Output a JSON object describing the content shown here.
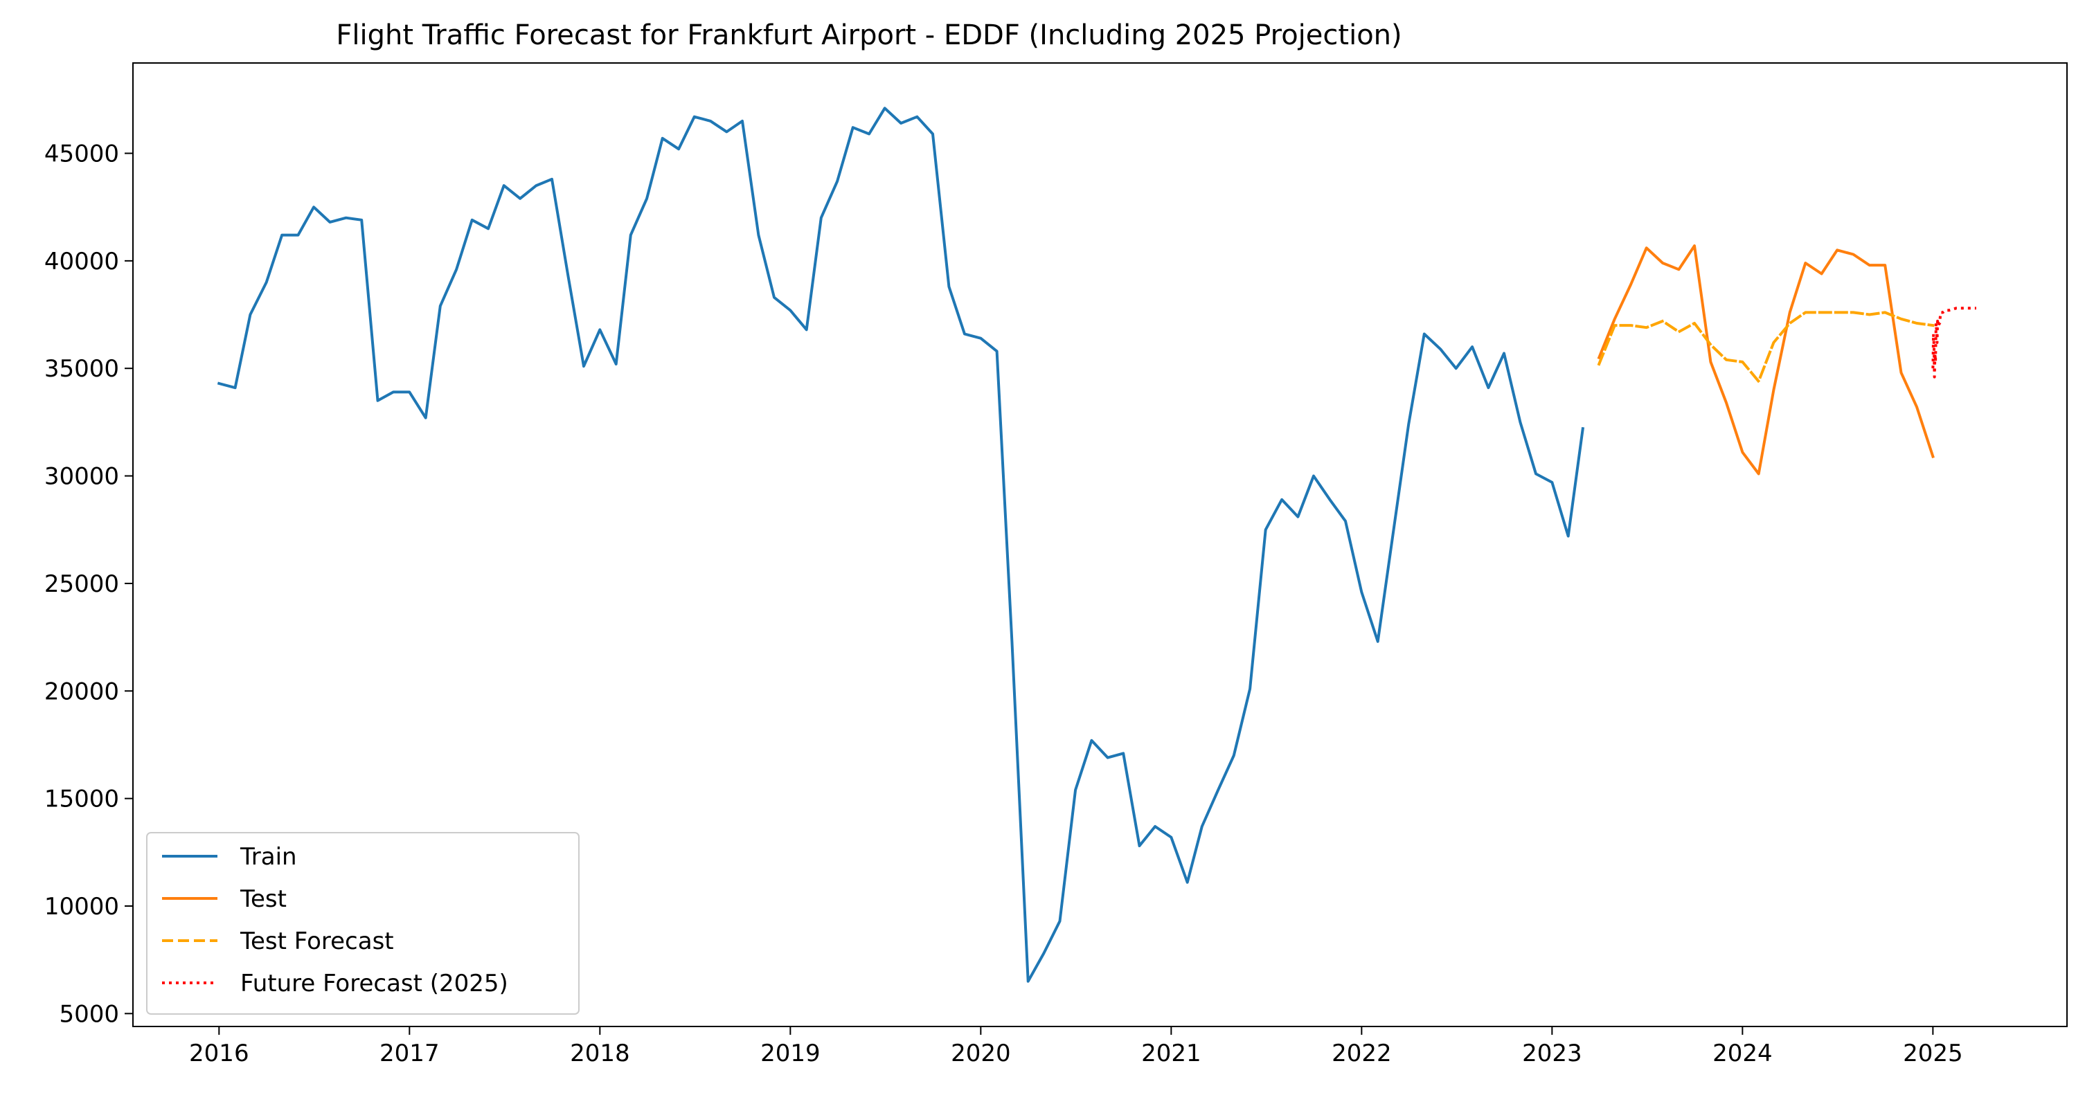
{
  "chart_data": {
    "type": "line",
    "title": "Flight Traffic Forecast for Frankfurt Airport - EDDF (Including 2025 Projection)",
    "xlabel": "",
    "ylabel": "",
    "xlim": [
      "2015-07-20",
      "2025-09-15"
    ],
    "ylim": [
      4400,
      49200
    ],
    "x_ticks": [
      "2016",
      "2017",
      "2018",
      "2019",
      "2020",
      "2021",
      "2022",
      "2023",
      "2024",
      "2025"
    ],
    "y_ticks": [
      5000,
      10000,
      15000,
      20000,
      25000,
      30000,
      35000,
      40000,
      45000
    ],
    "grid": false,
    "legend": {
      "position": "lower-left"
    },
    "series": [
      {
        "name": "Train",
        "color": "#1f77b4",
        "style": "solid",
        "x": [
          "2016-01",
          "2016-02",
          "2016-03",
          "2016-04",
          "2016-05",
          "2016-06",
          "2016-07",
          "2016-08",
          "2016-09",
          "2016-10",
          "2016-11",
          "2016-12",
          "2017-01",
          "2017-02",
          "2017-03",
          "2017-04",
          "2017-05",
          "2017-06",
          "2017-07",
          "2017-08",
          "2017-09",
          "2017-10",
          "2017-11",
          "2017-12",
          "2018-01",
          "2018-02",
          "2018-03",
          "2018-04",
          "2018-05",
          "2018-06",
          "2018-07",
          "2018-08",
          "2018-09",
          "2018-10",
          "2018-11",
          "2018-12",
          "2019-01",
          "2019-02",
          "2019-03",
          "2019-04",
          "2019-05",
          "2019-06",
          "2019-07",
          "2019-08",
          "2019-09",
          "2019-10",
          "2019-11",
          "2019-12",
          "2020-01",
          "2020-02",
          "2020-03",
          "2020-04",
          "2020-05",
          "2020-06",
          "2020-07",
          "2020-08",
          "2020-09",
          "2020-10",
          "2020-11",
          "2020-12",
          "2021-01",
          "2021-02",
          "2021-03",
          "2021-04",
          "2021-05",
          "2021-06",
          "2021-07",
          "2021-08",
          "2021-09",
          "2021-10",
          "2021-11",
          "2021-12",
          "2022-01",
          "2022-02",
          "2022-03",
          "2022-04",
          "2022-05",
          "2022-06",
          "2022-07",
          "2022-08",
          "2022-09",
          "2022-10",
          "2022-11",
          "2022-12",
          "2023-01",
          "2023-02",
          "2023-03"
        ],
        "values": [
          34300,
          34100,
          37500,
          39000,
          41200,
          41200,
          42500,
          41800,
          42000,
          41900,
          33500,
          33900,
          33900,
          32700,
          37900,
          39600,
          41900,
          41500,
          43500,
          42900,
          43500,
          43800,
          39300,
          35100,
          36800,
          35200,
          41200,
          42900,
          45700,
          45200,
          46700,
          46500,
          46000,
          46500,
          41200,
          38300,
          37700,
          36800,
          42000,
          43700,
          46200,
          45900,
          47100,
          46400,
          46700,
          45900,
          38800,
          36600,
          36400,
          35800,
          22300,
          6500,
          7800,
          9300,
          15400,
          17700,
          16900,
          17100,
          12800,
          13700,
          13200,
          11100,
          13700,
          15400,
          17000,
          20100,
          27500,
          28900,
          28100,
          30000,
          28900,
          27900,
          24600,
          22300,
          27100,
          32400,
          36600,
          35900,
          35000,
          36000,
          34100,
          35700,
          32500,
          30100,
          29700,
          27200,
          32200
        ]
      },
      {
        "name": "Test",
        "color": "#ff7f0e",
        "style": "solid",
        "x": [
          "2023-04",
          "2023-05",
          "2023-06",
          "2023-07",
          "2023-08",
          "2023-09",
          "2023-10",
          "2023-11",
          "2023-12",
          "2024-01",
          "2024-02",
          "2024-03",
          "2024-04",
          "2024-05",
          "2024-06",
          "2024-07",
          "2024-08",
          "2024-09",
          "2024-10",
          "2024-11",
          "2024-12",
          "2025-01"
        ],
        "values": [
          35500,
          37300,
          38900,
          40600,
          39900,
          39600,
          40700,
          35300,
          33400,
          31100,
          30100,
          34000,
          37600,
          39900,
          39400,
          40500,
          40300,
          39800,
          39800,
          34800,
          33200,
          30900
        ]
      },
      {
        "name": "Test Forecast",
        "color": "#ffa500",
        "style": "dashed",
        "x": [
          "2023-04",
          "2023-05",
          "2023-06",
          "2023-07",
          "2023-08",
          "2023-09",
          "2023-10",
          "2023-11",
          "2023-12",
          "2024-01",
          "2024-02",
          "2024-03",
          "2024-04",
          "2024-05",
          "2024-06",
          "2024-07",
          "2024-08",
          "2024-09",
          "2024-10",
          "2024-11",
          "2024-12",
          "2025-01"
        ],
        "values": [
          35200,
          37000,
          37000,
          36900,
          37200,
          36700,
          37100,
          36100,
          35400,
          35300,
          34400,
          36200,
          37100,
          37600,
          37600,
          37600,
          37600,
          37500,
          37600,
          37300,
          37100,
          37000
        ]
      },
      {
        "name": "Future Forecast (2025)",
        "color": "#ff0000",
        "style": "dotted",
        "x": [
          "2025-01-01",
          "2025-01-02",
          "2025-01-03",
          "2025-01-04",
          "2025-01-05",
          "2025-01-06",
          "2025-01-07",
          "2025-01-08",
          "2025-01-09",
          "2025-01-10",
          "2025-01-11",
          "2025-01-12",
          "2025-01-13",
          "2025-01-14",
          "2025-01-15",
          "2025-01-16",
          "2025-01-17",
          "2025-01-20",
          "2025-01-25",
          "2025-02-01",
          "2025-02-15",
          "2025-03-01",
          "2025-03-15",
          "2025-03-25"
        ],
        "values": [
          35000,
          36600,
          36100,
          34600,
          35700,
          35300,
          37100,
          36800,
          36200,
          37200,
          37100,
          37000,
          37100,
          37100,
          37400,
          37600,
          37600,
          37600,
          37700,
          37700,
          37800,
          37800,
          37800,
          37800
        ]
      }
    ]
  }
}
